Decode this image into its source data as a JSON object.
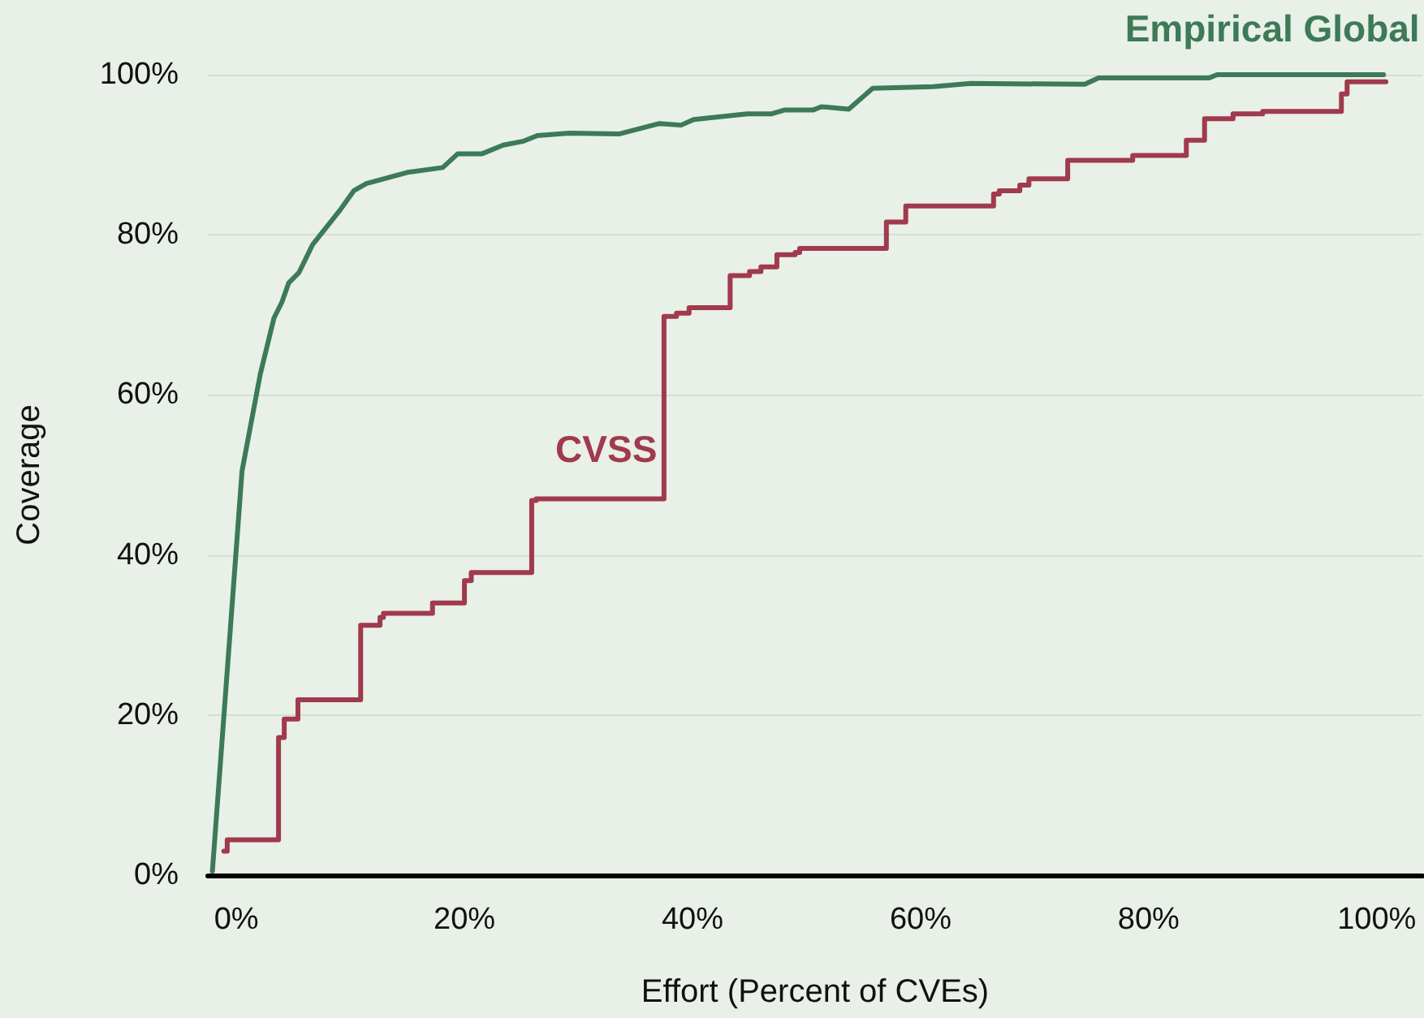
{
  "chart_data": {
    "type": "line",
    "xlabel": "Effort (Percent of CVEs)",
    "ylabel": "Coverage",
    "xlim": [
      -2.5,
      104
    ],
    "ylim": [
      0,
      100
    ],
    "xticks": [
      {
        "value": 0,
        "label": "0%"
      },
      {
        "value": 20,
        "label": "20%"
      },
      {
        "value": 40,
        "label": "40%"
      },
      {
        "value": 60,
        "label": "60%"
      },
      {
        "value": 80,
        "label": "80%"
      },
      {
        "value": 100,
        "label": "100%"
      }
    ],
    "yticks": [
      {
        "value": 0,
        "label": "0%"
      },
      {
        "value": 20,
        "label": "20%"
      },
      {
        "value": 40,
        "label": "40%"
      },
      {
        "value": 60,
        "label": "60%"
      },
      {
        "value": 80,
        "label": "80%"
      },
      {
        "value": 100,
        "label": "100%"
      }
    ],
    "grid": "y",
    "legend": false,
    "marker": "none",
    "line_style": "solid",
    "series": [
      {
        "name": "Empirical Global",
        "color": "#3d7a57",
        "x": [
          -2.1,
          0.5,
          2.1,
          3.3,
          4.0,
          4.6,
          5.5,
          6.7,
          9.1,
          10.3,
          11.4,
          15.0,
          18.1,
          19.4,
          21.5,
          23.4,
          25.2,
          26.4,
          29.2,
          33.6,
          37.1,
          39.0,
          40.1,
          44.8,
          46.9,
          48.1,
          50.6,
          51.3,
          53.7,
          55.8,
          61.1,
          64.4,
          74.4,
          75.6,
          85.3,
          86.0,
          100.6
        ],
        "values": [
          0.5,
          50.5,
          62.6,
          69.6,
          71.6,
          74.0,
          75.3,
          78.8,
          83.1,
          85.5,
          86.4,
          87.8,
          88.4,
          90.1,
          90.1,
          91.2,
          91.7,
          92.4,
          92.7,
          92.6,
          93.9,
          93.7,
          94.4,
          95.1,
          95.1,
          95.6,
          95.6,
          96.0,
          95.7,
          98.3,
          98.5,
          98.9,
          98.8,
          99.6,
          99.6,
          100,
          100
        ]
      },
      {
        "name": "CVSS",
        "type": "step",
        "color": "#a03a4c",
        "x": [
          -1.1,
          -0.8,
          3.7,
          4.2,
          5.4,
          10.9,
          12.6,
          12.9,
          17.2,
          20.0,
          20.6,
          25.9,
          26.3,
          37.5,
          38.6,
          39.7,
          43.3,
          45.0,
          46.0,
          47.4,
          49.0,
          49.4,
          57.0,
          58.7,
          66.4,
          66.9,
          68.7,
          69.5,
          72.9,
          78.6,
          83.3,
          84.9,
          87.4,
          90.0,
          96.9,
          97.4,
          100.8
        ],
        "values": [
          3.0,
          4.4,
          17.2,
          19.5,
          21.9,
          31.2,
          32.2,
          32.7,
          34.0,
          36.8,
          37.8,
          46.8,
          47.0,
          69.8,
          70.2,
          70.9,
          74.9,
          75.4,
          76.0,
          77.5,
          77.8,
          78.3,
          81.6,
          83.6,
          85.1,
          85.5,
          86.2,
          87.0,
          89.3,
          89.9,
          91.8,
          94.5,
          95.1,
          95.4,
          97.6,
          99.1,
          99.1
        ]
      }
    ]
  }
}
